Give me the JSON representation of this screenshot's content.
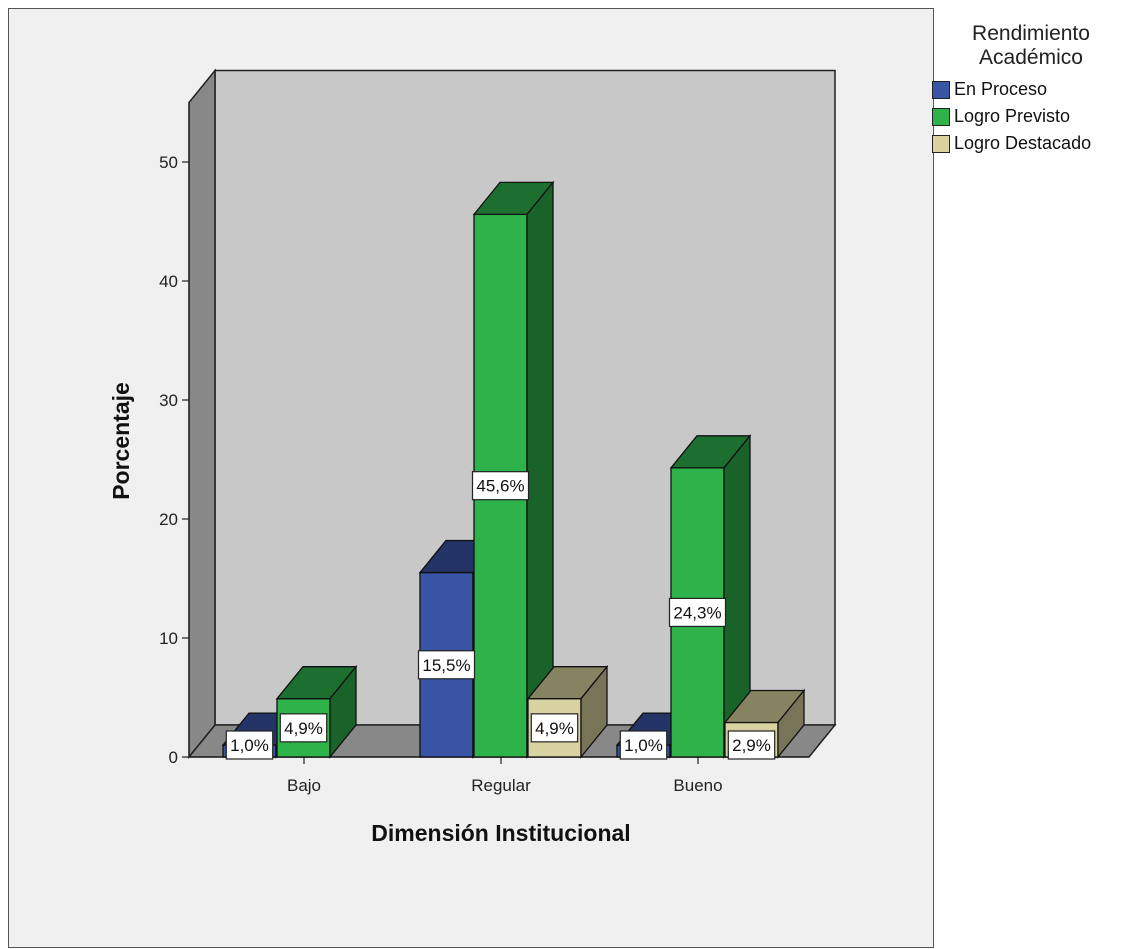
{
  "chart_data": {
    "type": "bar",
    "title": "",
    "xlabel": "Dimensión Institucional",
    "ylabel": "Porcentaje",
    "ylim": [
      0,
      55
    ],
    "yticks": [
      0,
      10,
      20,
      30,
      40,
      50
    ],
    "categories": [
      "Bajo",
      "Regular",
      "Bueno"
    ],
    "legend_title": "Rendimiento\nAcadémico",
    "legend_position": "right",
    "series": [
      {
        "name": "En Proceso",
        "color": "#3a54a6",
        "values": [
          1.0,
          15.5,
          1.0
        ],
        "labels": [
          "1,0%",
          "15,5%",
          "1,0%"
        ]
      },
      {
        "name": "Logro Previsto",
        "color": "#2db34a",
        "values": [
          4.9,
          45.6,
          24.3
        ],
        "labels": [
          "4,9%",
          "45,6%",
          "24,3%"
        ]
      },
      {
        "name": "Logro Destacado",
        "color": "#d8d3a0",
        "values": [
          0,
          4.9,
          2.9
        ],
        "labels": [
          "",
          "4,9%",
          "2,9%"
        ]
      }
    ]
  }
}
